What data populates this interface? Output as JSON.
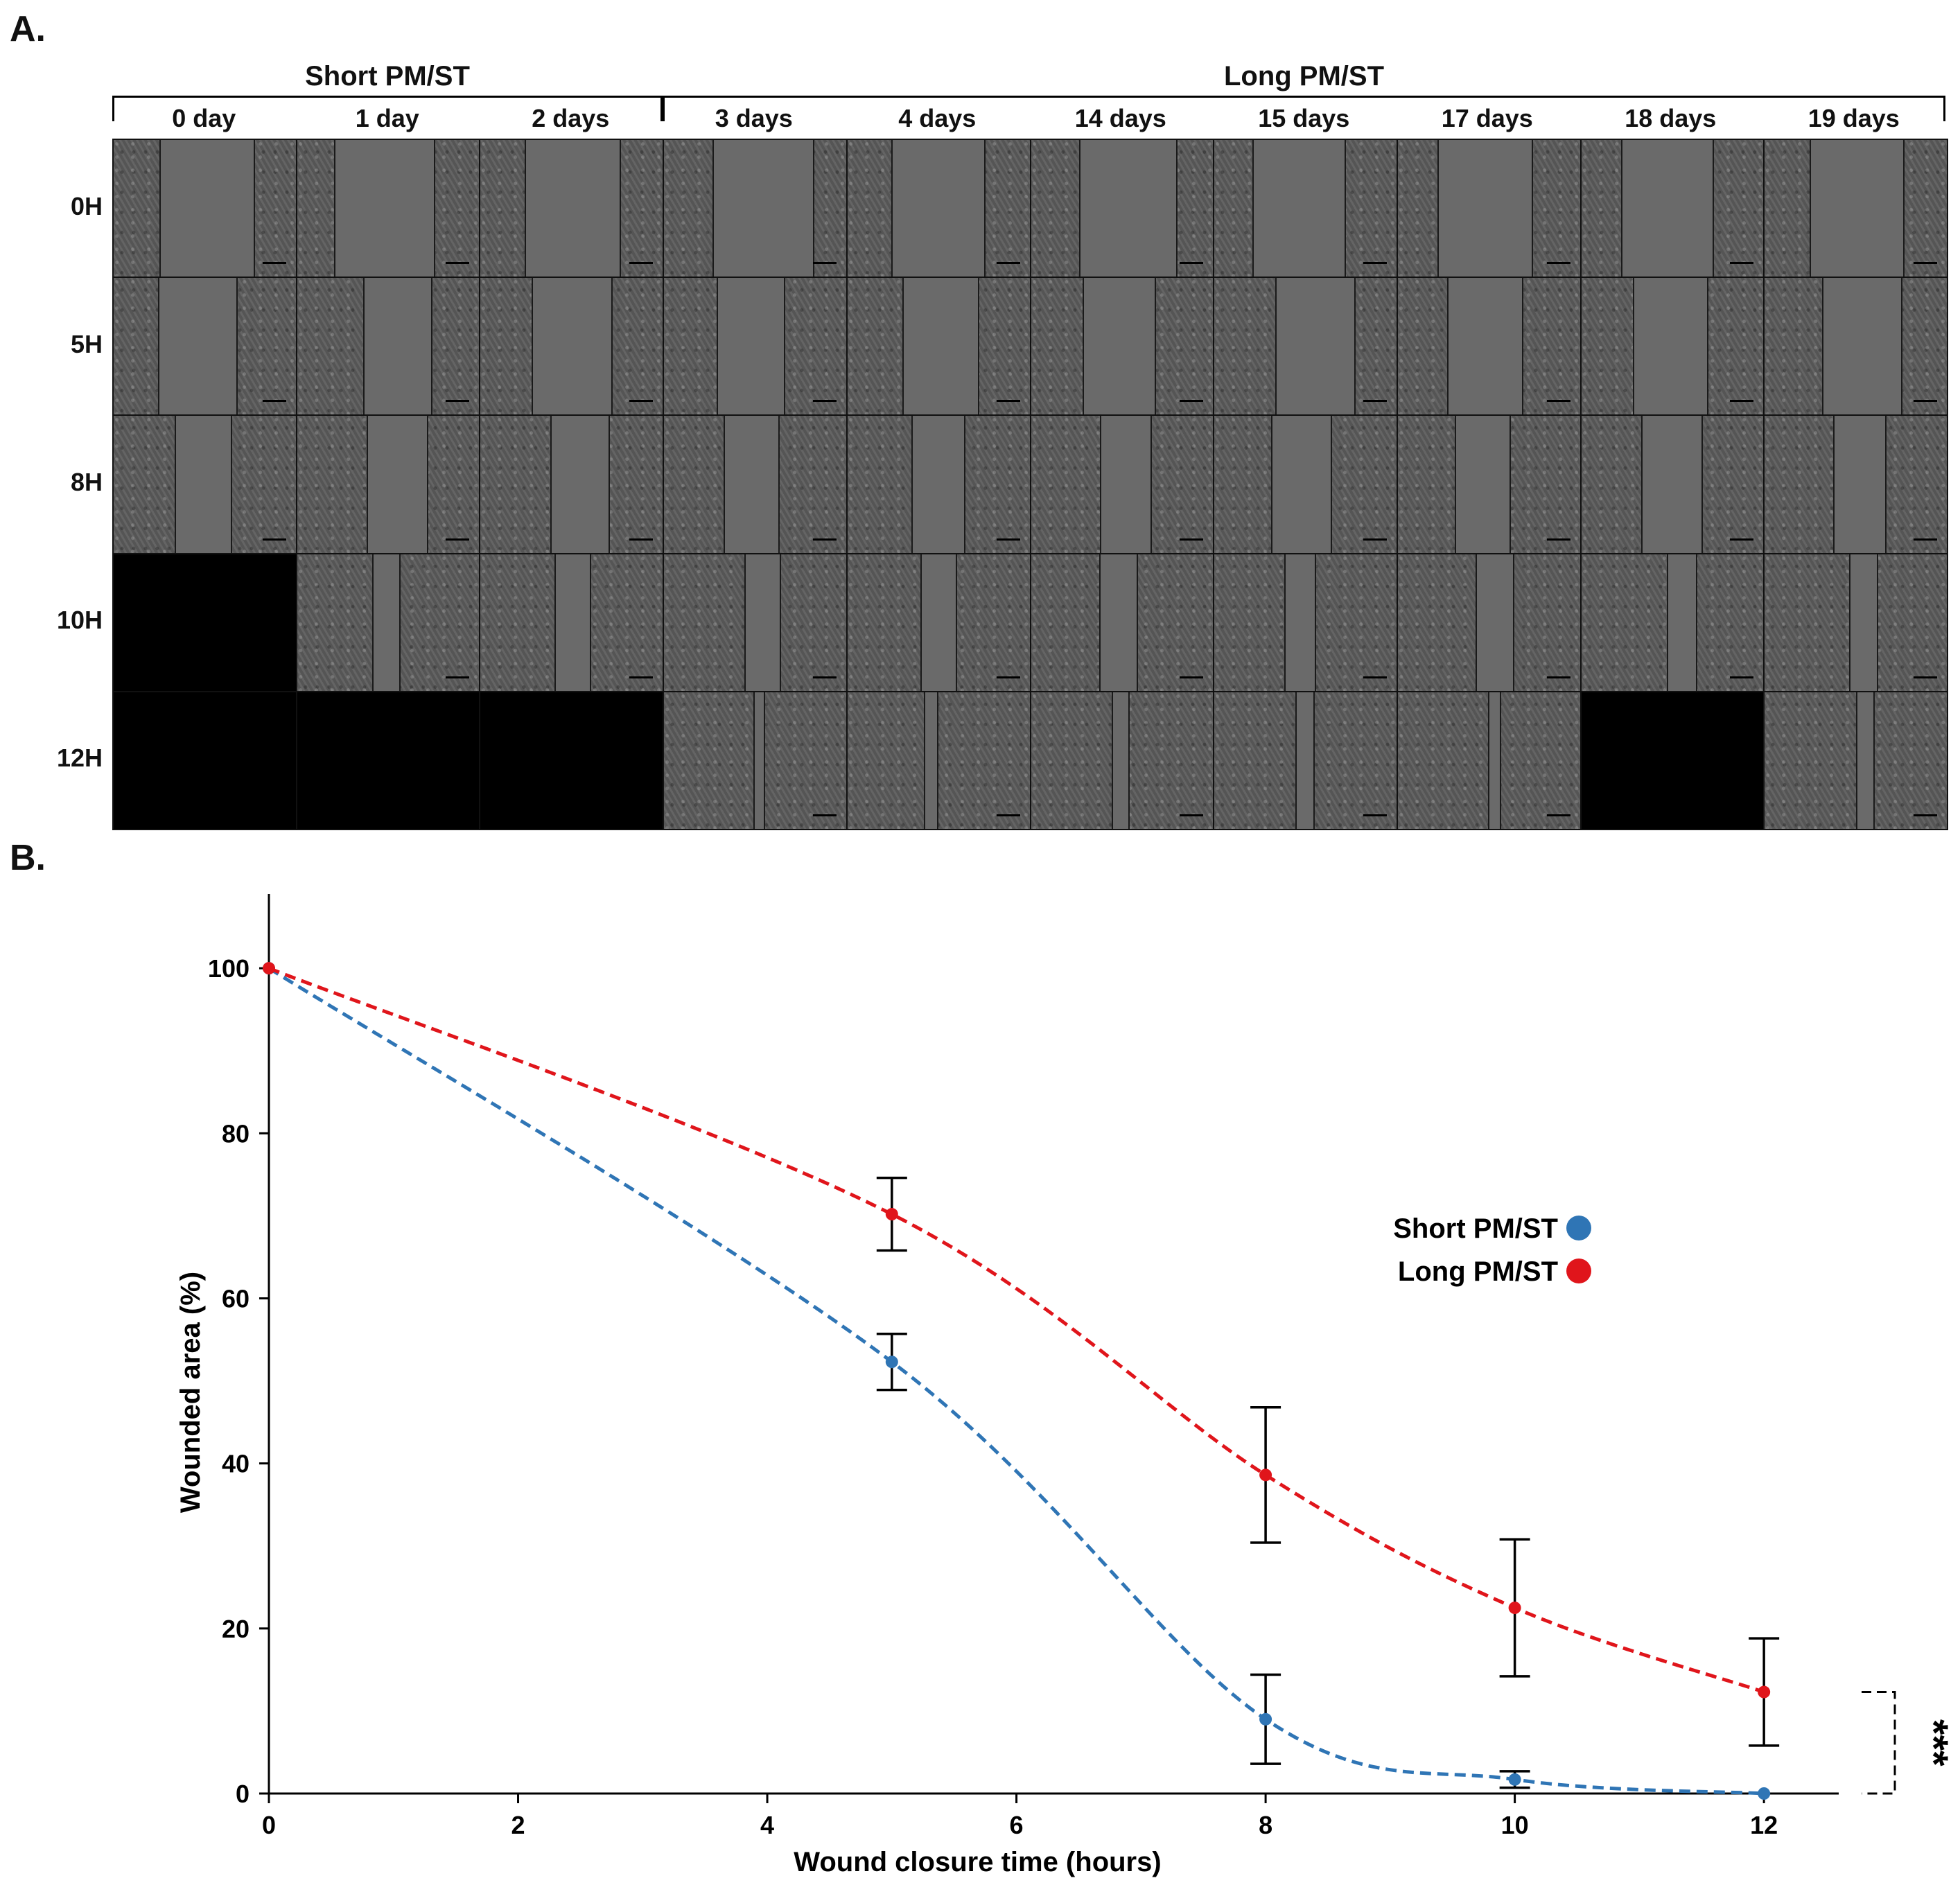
{
  "panel_a": {
    "label": "A.",
    "groups": [
      {
        "label": "Short PM/ST"
      },
      {
        "label": "Long PM/ST"
      }
    ],
    "columns": [
      "0 day",
      "1 day",
      "2 days",
      "3 days",
      "4 days",
      "14 days",
      "15 days",
      "17 days",
      "18 days",
      "19 days"
    ],
    "rows": [
      "0H",
      "5H",
      "8H",
      "10H",
      "12H"
    ],
    "missing_images": [
      {
        "row": "10H",
        "column": "0 day"
      },
      {
        "row": "12H",
        "column": "0 day"
      },
      {
        "row": "12H",
        "column": "1 day"
      },
      {
        "row": "12H",
        "column": "2 days"
      },
      {
        "row": "12H",
        "column": "18 days"
      }
    ]
  },
  "panel_b": {
    "label": "B.",
    "significance": "***"
  },
  "chart_data": {
    "type": "line",
    "title": "",
    "xlabel": "Wound closure time (hours)",
    "ylabel": "Wounded area (%)",
    "xlim": [
      0,
      12.6
    ],
    "ylim": [
      0,
      109
    ],
    "xticks": [
      0,
      2,
      4,
      6,
      8,
      10,
      12
    ],
    "yticks": [
      0,
      20,
      40,
      60,
      80,
      100
    ],
    "grid": false,
    "legend_position": "center-right",
    "series": [
      {
        "name": "Short PM/ST",
        "color": "#2f75b5",
        "x": [
          0,
          5,
          8,
          10,
          12
        ],
        "y": [
          100,
          52.3,
          9.0,
          1.7,
          0.0
        ],
        "error": [
          0,
          3.4,
          5.4,
          1.0,
          0.0
        ]
      },
      {
        "name": "Long PM/ST",
        "color": "#e0151b",
        "x": [
          0,
          5,
          8,
          10,
          12
        ],
        "y": [
          100,
          70.2,
          38.6,
          22.5,
          12.3
        ],
        "error": [
          0,
          4.4,
          8.2,
          8.3,
          6.5
        ]
      }
    ]
  }
}
